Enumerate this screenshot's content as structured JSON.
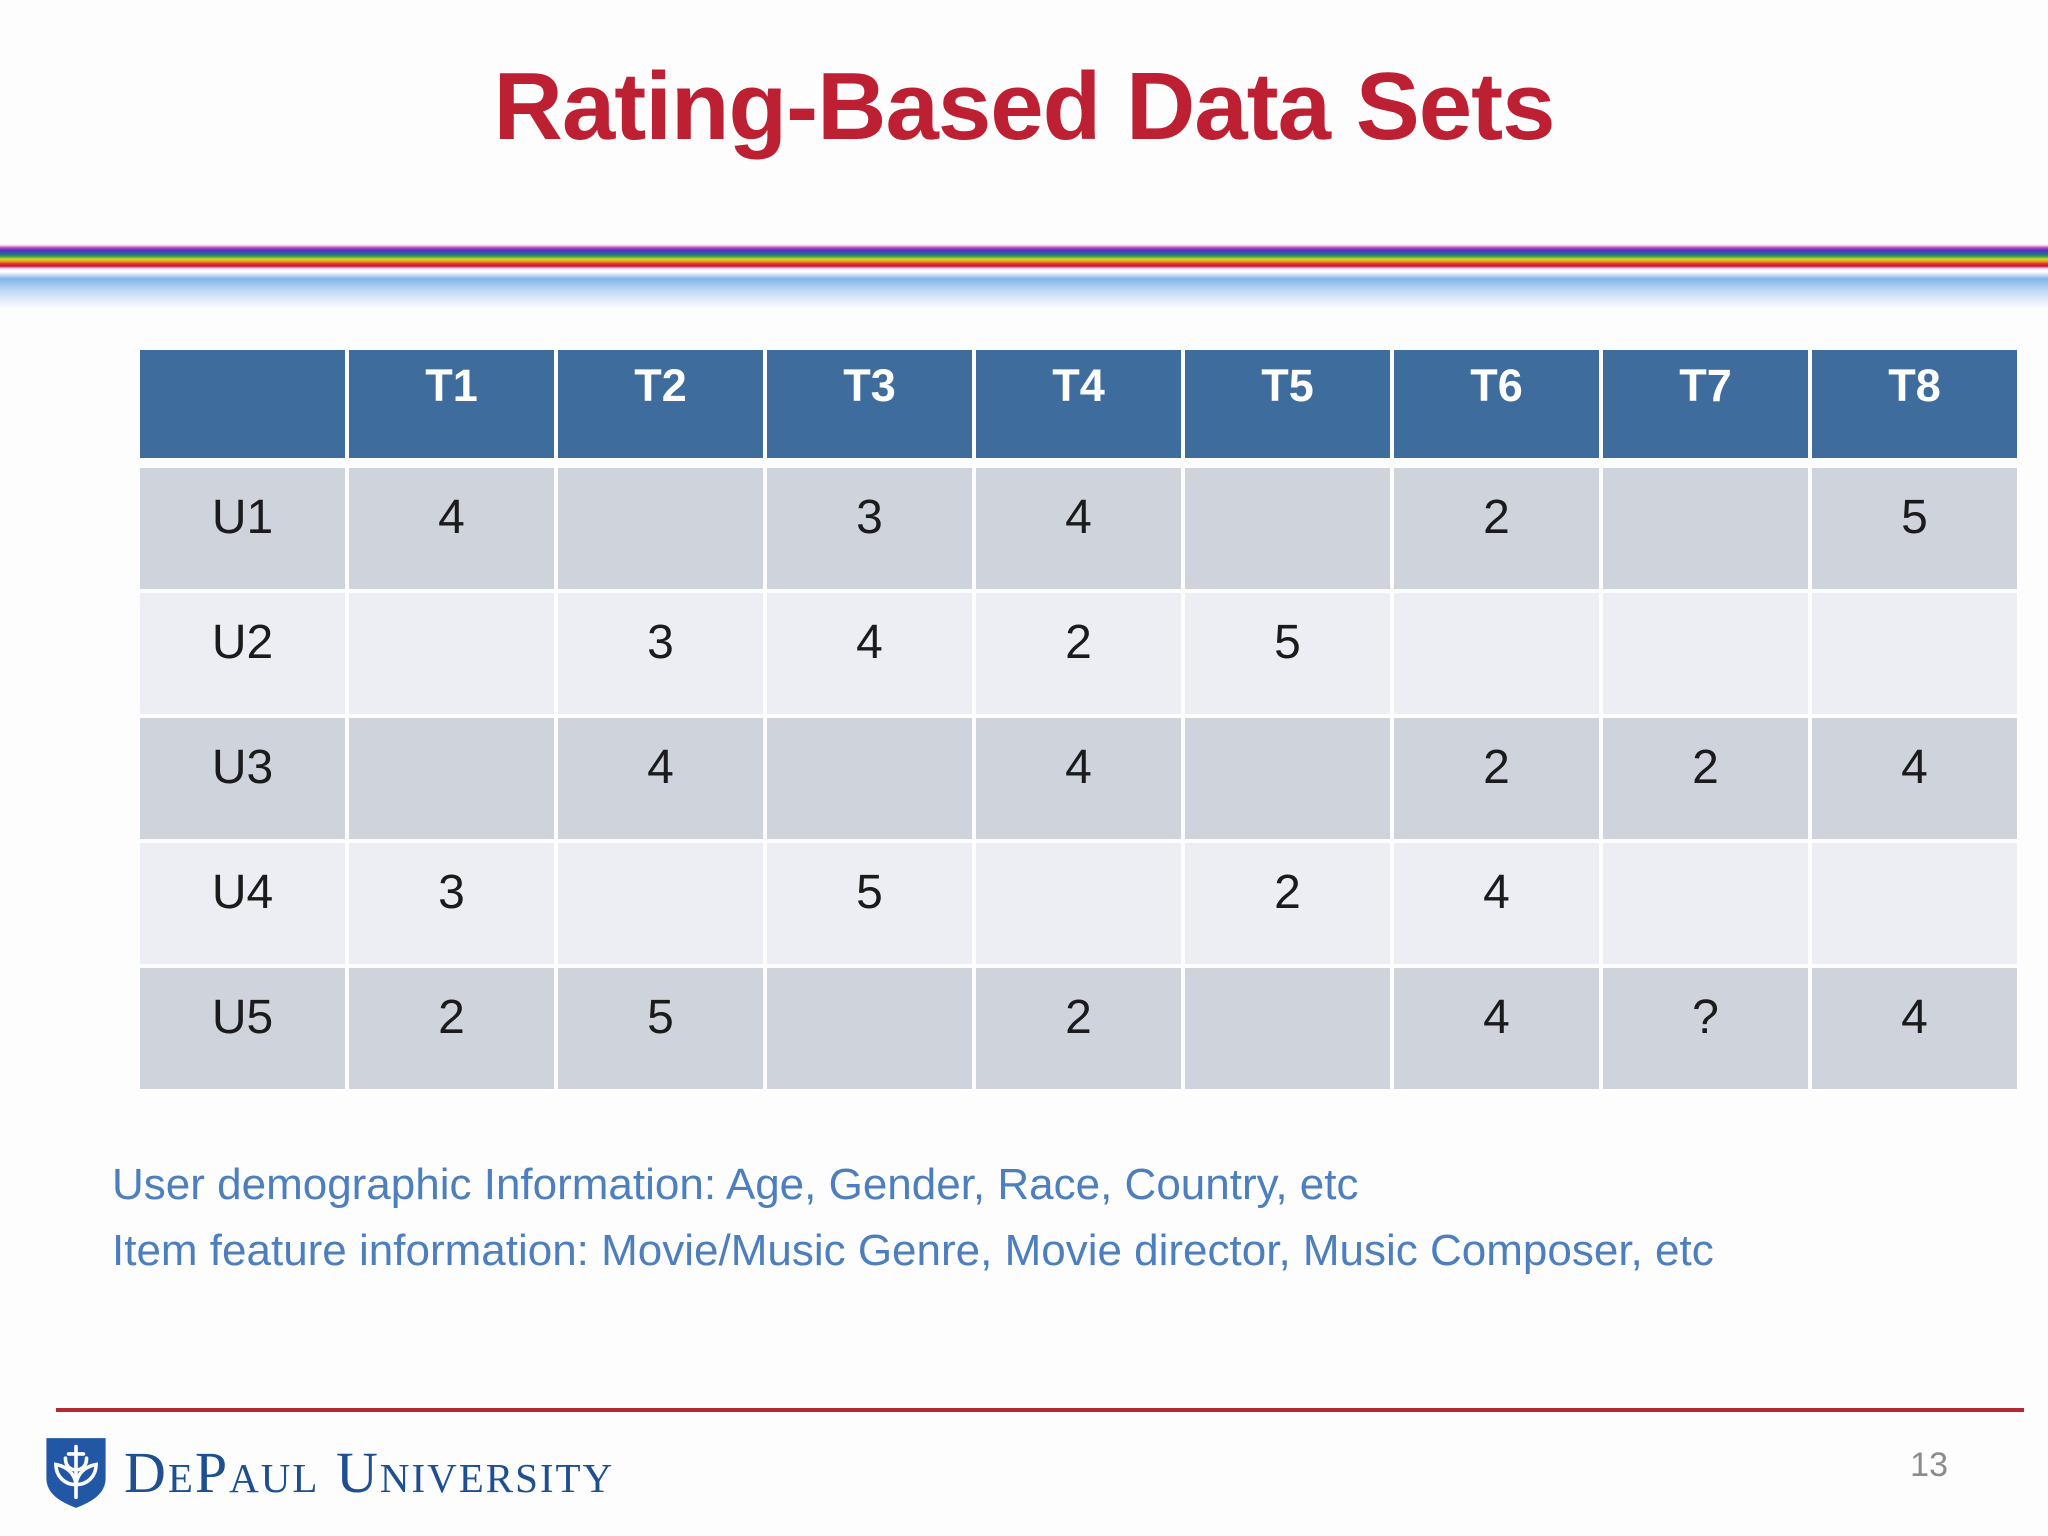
{
  "slide": {
    "title": "Rating-Based Data Sets",
    "page_number": "13"
  },
  "table": {
    "columns": [
      "",
      "T1",
      "T2",
      "T3",
      "T4",
      "T5",
      "T6",
      "T7",
      "T8"
    ],
    "rows": [
      {
        "label": "U1",
        "values": [
          "4",
          "",
          "3",
          "4",
          "",
          "2",
          "",
          "5"
        ]
      },
      {
        "label": "U2",
        "values": [
          "",
          "3",
          "4",
          "2",
          "5",
          "",
          "",
          ""
        ]
      },
      {
        "label": "U3",
        "values": [
          "",
          "4",
          "",
          "4",
          "",
          "2",
          "2",
          "4"
        ]
      },
      {
        "label": "U4",
        "values": [
          "3",
          "",
          "5",
          "",
          "2",
          "4",
          "",
          ""
        ]
      },
      {
        "label": "U5",
        "values": [
          "2",
          "5",
          "",
          "2",
          "",
          "4",
          "?",
          "4"
        ]
      }
    ]
  },
  "notes": {
    "line1": "User demographic Information: Age, Gender, Race, Country, etc",
    "line2": "Item feature information: Movie/Music Genre, Movie director, Music Composer, etc"
  },
  "footer": {
    "logo_text": "DePaul University"
  },
  "colors": {
    "title_red": "#be2033",
    "header_blue": "#3e6d9d",
    "row_band_dark": "#cfd3db",
    "row_band_light": "#eceef3",
    "note_blue": "#4d7ebd",
    "logo_blue": "#1d4f91",
    "footer_line_red": "#b32b30",
    "page_number_gray": "#8b8b8b"
  }
}
